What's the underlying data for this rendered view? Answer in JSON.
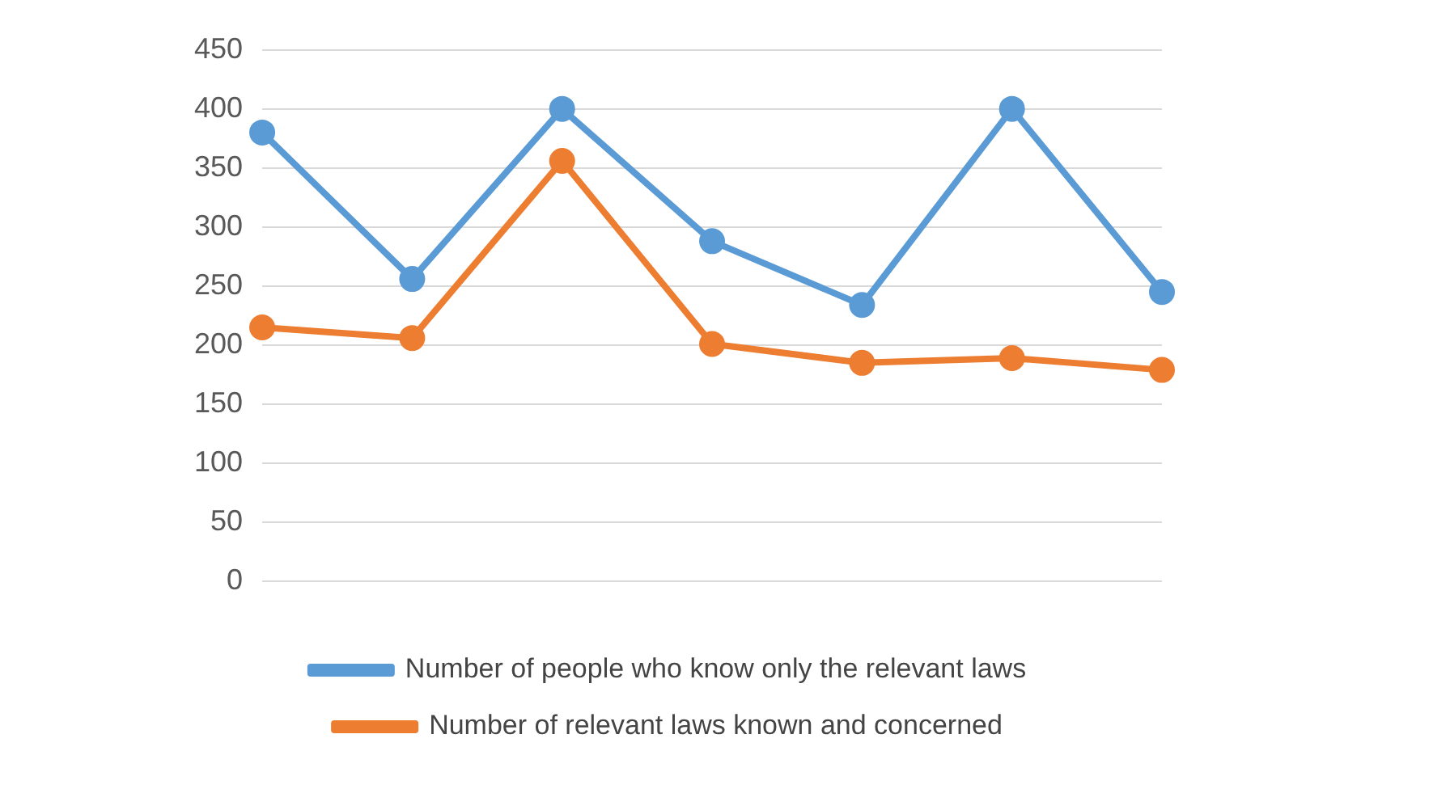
{
  "chart_data": {
    "type": "line",
    "categories": [
      null,
      null,
      null,
      null,
      null,
      null,
      null
    ],
    "series": [
      {
        "name": "Number of people who know only the relevant laws",
        "color": "#5b9bd5",
        "values": [
          380,
          256,
          400,
          288,
          234,
          400,
          245
        ]
      },
      {
        "name": "Number of relevant laws known and concerned",
        "color": "#ed7d31",
        "values": [
          215,
          206,
          356,
          201,
          185,
          189,
          179
        ]
      }
    ],
    "ylim": [
      0,
      450
    ],
    "yticks": [
      0,
      50,
      100,
      150,
      200,
      250,
      300,
      350,
      400,
      450
    ],
    "grid": "y",
    "legend": "bottom",
    "marker": "circle",
    "line_style": "solid"
  }
}
